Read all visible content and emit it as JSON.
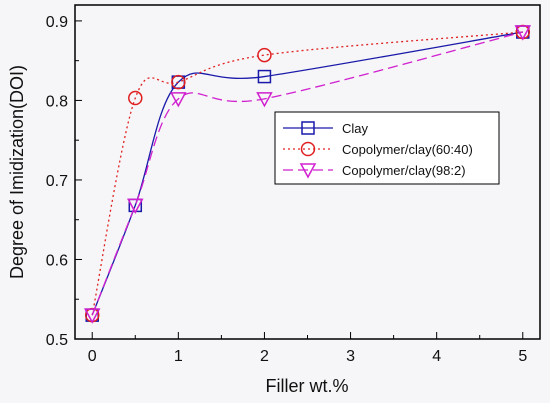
{
  "chart_data": {
    "type": "line",
    "title": "",
    "xlabel": "Filler wt.%",
    "ylabel": "Degree of Imidization(DOI)",
    "xlim": [
      -0.2,
      5.2
    ],
    "ylim": [
      0.5,
      0.92
    ],
    "xticks": [
      0,
      1,
      2,
      3,
      4,
      5
    ],
    "yticks": [
      0.5,
      0.6,
      0.7,
      0.8,
      0.9
    ],
    "xtick_labels": [
      "0",
      "1",
      "2",
      "3",
      "4",
      "5"
    ],
    "ytick_labels": [
      "0.5",
      "0.6",
      "0.7",
      "0.8",
      "0.9"
    ],
    "grid": false,
    "legend_position": "center-right",
    "series": [
      {
        "name": "Clay",
        "color": "#1a1aaa",
        "line_style": "solid",
        "marker": "square",
        "x": [
          0,
          0.5,
          1,
          2,
          5
        ],
        "y": [
          0.53,
          0.668,
          0.823,
          0.83,
          0.886
        ]
      },
      {
        "name": "Copolymer/clay(60:40)",
        "color": "#e02020",
        "line_style": "dotted",
        "marker": "circle",
        "x": [
          0,
          0.5,
          1,
          2,
          5
        ],
        "y": [
          0.53,
          0.803,
          0.823,
          0.857,
          0.886
        ]
      },
      {
        "name": "Copolymer/clay(98:2)",
        "color": "#d020d0",
        "line_style": "dashed",
        "marker": "triangle-down",
        "x": [
          0,
          0.5,
          1,
          2,
          5
        ],
        "y": [
          0.53,
          0.668,
          0.802,
          0.802,
          0.886
        ]
      }
    ]
  }
}
